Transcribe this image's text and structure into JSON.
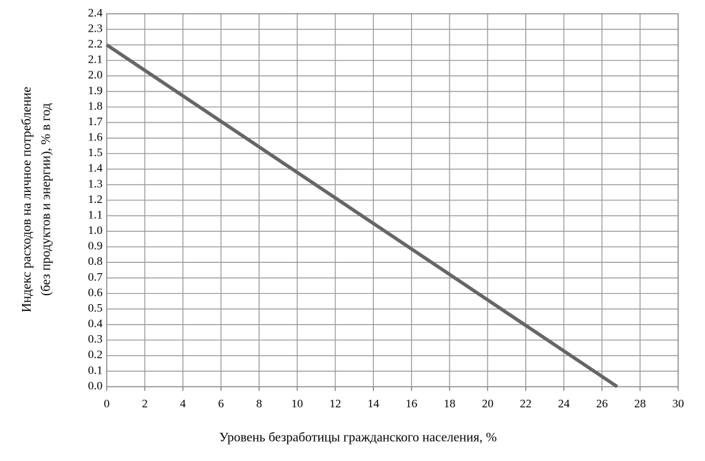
{
  "chart_data": {
    "type": "line",
    "xlabel": "Уровень безработицы гражданского населения, %",
    "ylabel": [
      "Индекс расходов на личное потребление",
      "(без продуктов и энергии), % в год"
    ],
    "x": [
      0,
      26.8
    ],
    "series": [
      {
        "color": "#666666",
        "values": [
          2.2,
          0
        ]
      }
    ],
    "xlim": [
      0,
      30
    ],
    "xticks": [
      0,
      2,
      4,
      6,
      8,
      10,
      12,
      14,
      16,
      18,
      20,
      22,
      24,
      26,
      28,
      30
    ],
    "ylim": [
      0,
      2.4
    ],
    "yticks": [
      {
        "value": 0,
        "label": "0.0"
      },
      0.1,
      0.2,
      0.3,
      0.4,
      0.5,
      0.6,
      0.7,
      0.8,
      0.9,
      {
        "value": 1,
        "label": "1.0"
      },
      1.1,
      1.2,
      1.3,
      1.4,
      1.5,
      1.6,
      1.7,
      1.8,
      1.9,
      {
        "value": 2,
        "label": "2.0"
      },
      2.1,
      2.2,
      2.3,
      2.4
    ],
    "grid": true
  }
}
